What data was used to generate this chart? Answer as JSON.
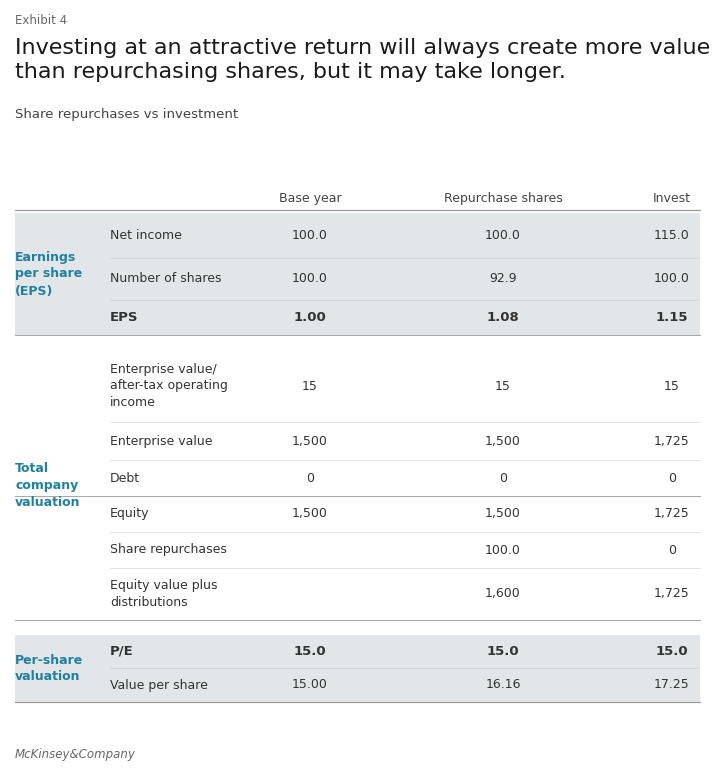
{
  "exhibit_label": "Exhibit 4",
  "title_line1": "Investing at an attractive return will always create more value",
  "title_line2": "than repurchasing shares, but it may take longer.",
  "subtitle": "Share repurchases vs investment",
  "col_headers": [
    "",
    "Base year",
    "Repurchase shares",
    "Invest"
  ],
  "section1_label": "Earnings\nper share\n(EPS)",
  "section2_label": "Total\ncompany\nvaluation",
  "section3_label": "Per-share\nvaluation",
  "rows": [
    {
      "section": 1,
      "label": "Net income",
      "base": "100.0",
      "repurchase": "100.0",
      "invest": "115.0",
      "bold": false
    },
    {
      "section": 1,
      "label": "Number of shares",
      "base": "100.0",
      "repurchase": "92.9",
      "invest": "100.0",
      "bold": false
    },
    {
      "section": 1,
      "label": "EPS",
      "base": "1.00",
      "repurchase": "1.08",
      "invest": "1.15",
      "bold": true
    },
    {
      "section": 2,
      "label": "Enterprise value/\nafter-tax operating\nincome",
      "base": "15",
      "repurchase": "15",
      "invest": "15",
      "bold": false
    },
    {
      "section": 2,
      "label": "Enterprise value",
      "base": "1,500",
      "repurchase": "1,500",
      "invest": "1,725",
      "bold": false
    },
    {
      "section": 2,
      "label": "Debt",
      "base": "0",
      "repurchase": "0",
      "invest": "0",
      "bold": false
    },
    {
      "section": 2,
      "label": "Equity",
      "base": "1,500",
      "repurchase": "1,500",
      "invest": "1,725",
      "bold": false
    },
    {
      "section": 2,
      "label": "Share repurchases",
      "base": "",
      "repurchase": "100.0",
      "invest": "0",
      "bold": false
    },
    {
      "section": 2,
      "label": "Equity value plus\ndistributions",
      "base": "",
      "repurchase": "1,600",
      "invest": "1,725",
      "bold": false
    },
    {
      "section": 3,
      "label": "P/E",
      "base": "15.0",
      "repurchase": "15.0",
      "invest": "15.0",
      "bold": true
    },
    {
      "section": 3,
      "label": "Value per share",
      "base": "15.00",
      "repurchase": "16.16",
      "invest": "17.25",
      "bold": false
    }
  ],
  "divider_after": [
    2,
    5,
    8
  ],
  "footer": "McKinsey&Company",
  "bg_color": "#ffffff",
  "section_shaded": [
    1,
    3
  ],
  "shaded_color": "#e2e6e8",
  "section_label_color": "#2080a0",
  "divider_color": "#aaaaaa",
  "light_divider_color": "#cccccc",
  "text_color": "#333333"
}
